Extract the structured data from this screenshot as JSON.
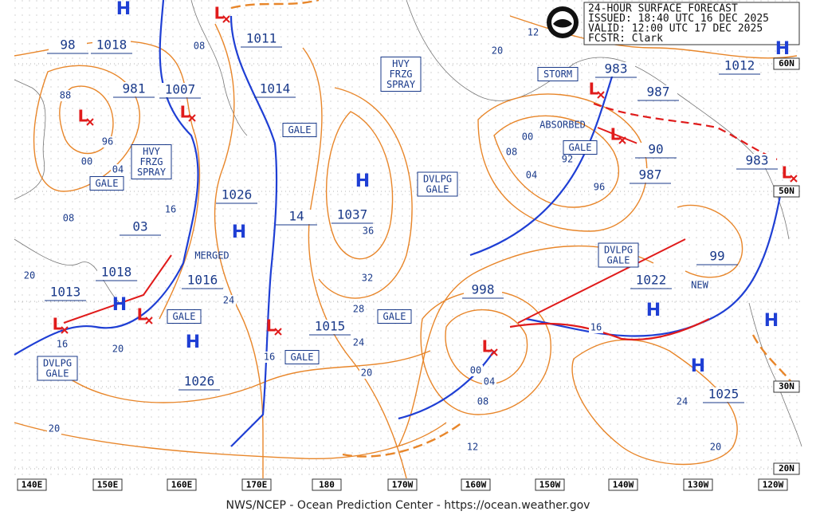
{
  "header": {
    "lines": [
      "24-HOUR SURFACE FORECAST",
      "ISSUED: 18:40 UTC 16 DEC 2025",
      "VALID:  12:00 UTC 17 DEC 2025",
      "FCSTR:  Clark"
    ]
  },
  "footer": "NWS/NCEP - Ocean Prediction Center - https://ocean.weather.gov",
  "lon_labels": [
    "140E",
    "150E",
    "160E",
    "170E",
    "180",
    "170W",
    "160W",
    "150W",
    "140W",
    "130W",
    "120W"
  ],
  "lat_labels": [
    "60N",
    "50N",
    "30N",
    "20N"
  ],
  "pressure_labels": [
    "98",
    "1018",
    "981",
    "1007",
    "1011",
    "1014",
    "1026",
    "1037",
    "14",
    "03",
    "1018",
    "1013",
    "1016",
    "1026",
    "1015",
    "998",
    "983",
    "987",
    "1012",
    "90",
    "987",
    "983",
    "99",
    "1022",
    "1025"
  ],
  "isobar_labels": [
    "88",
    "96",
    "00",
    "04",
    "08",
    "20",
    "16",
    "16",
    "20",
    "24",
    "16",
    "36",
    "32",
    "28",
    "24",
    "20",
    "20",
    "12",
    "20",
    "08",
    "00",
    "92",
    "04",
    "96",
    "00",
    "04",
    "08",
    "12",
    "16",
    "24",
    "20",
    "08"
  ],
  "boxes": [
    {
      "lines": [
        "GALE"
      ]
    },
    {
      "lines": [
        "HVY",
        "FRZG",
        "SPRAY"
      ]
    },
    {
      "lines": [
        "GALE"
      ]
    },
    {
      "lines": [
        "HVY",
        "FRZG",
        "SPRAY"
      ]
    },
    {
      "lines": [
        "DVLPG",
        "GALE"
      ]
    },
    {
      "lines": [
        "STORM"
      ]
    },
    {
      "lines": [
        "GALE"
      ]
    },
    {
      "lines": [
        "DVLPG",
        "GALE"
      ]
    },
    {
      "lines": [
        "GALE"
      ]
    },
    {
      "lines": [
        "GALE"
      ]
    },
    {
      "lines": [
        "GALE"
      ]
    },
    {
      "lines": [
        "DVLPG",
        "GALE"
      ]
    }
  ],
  "highs": [
    "H",
    "H",
    "H",
    "H",
    "H",
    "H",
    "H",
    "H",
    "H"
  ],
  "lows": [
    "L",
    "L",
    "L",
    "L",
    "L",
    "L",
    "L",
    "L",
    "L",
    "L"
  ],
  "notes": [
    "MERGED",
    "ABSORBED",
    "NEW"
  ]
}
